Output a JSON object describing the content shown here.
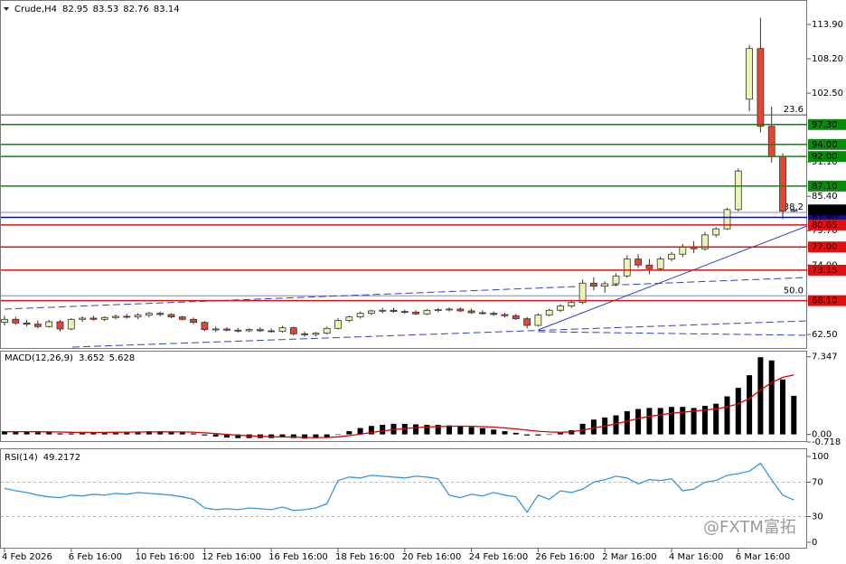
{
  "header": {
    "symbol": "Crude,H4"
  },
  "watermark": "@FXTM富拓",
  "chart_data": [
    {
      "type": "candlestick",
      "up_color": "#eef2b4",
      "down_color": "#e4472f",
      "outline_color": "#333333",
      "open": [
        64.5,
        65.0,
        64.4,
        64.2,
        63.8,
        64.6,
        63.4,
        65.0,
        65.2,
        65.0,
        65.3,
        65.5,
        65.4,
        65.7,
        66.0,
        65.8,
        65.4,
        65.0,
        64.5,
        63.3,
        63.4,
        63.2,
        63.1,
        63.3,
        63.1,
        63.0,
        63.6,
        62.6,
        62.5,
        62.7,
        63.5,
        64.8,
        65.4,
        66.0,
        66.4,
        66.5,
        66.3,
        66.2,
        65.9,
        66.5,
        66.6,
        66.7,
        66.4,
        66.1,
        66.0,
        65.8,
        65.6,
        65.1,
        64.0,
        65.7,
        66.5,
        67.2,
        67.8,
        71.0,
        70.5,
        70.9,
        72.2,
        75.0,
        74.0,
        73.4,
        75.0,
        75.8,
        77.0,
        76.7,
        79.0,
        80.0,
        83.2,
        101.5,
        109.9,
        97.0,
        92.0,
        82.95
      ],
      "high": [
        65.6,
        65.4,
        64.9,
        64.8,
        64.9,
        64.9,
        65.2,
        65.5,
        65.6,
        65.5,
        65.8,
        65.9,
        66.0,
        66.2,
        66.3,
        66.0,
        65.6,
        65.3,
        64.7,
        63.8,
        63.7,
        63.6,
        63.5,
        63.7,
        63.5,
        63.9,
        63.8,
        63.0,
        62.9,
        63.8,
        65.2,
        65.6,
        66.3,
        66.6,
        66.9,
        66.9,
        66.6,
        66.5,
        66.7,
        66.9,
        67.0,
        67.0,
        66.8,
        66.5,
        66.3,
        66.1,
        65.9,
        65.4,
        66.0,
        66.8,
        67.5,
        68.0,
        71.6,
        72.0,
        71.3,
        72.6,
        75.6,
        75.8,
        75.0,
        75.4,
        76.2,
        77.5,
        78.0,
        79.5,
        80.3,
        83.5,
        90.0,
        110.5,
        115.0,
        100.3,
        92.5,
        83.53
      ],
      "low": [
        64.0,
        64.1,
        63.8,
        63.5,
        63.6,
        63.0,
        63.2,
        64.6,
        64.8,
        64.7,
        65.0,
        65.1,
        65.0,
        65.3,
        65.5,
        65.2,
        64.8,
        64.2,
        63.0,
        62.9,
        63.0,
        62.8,
        62.9,
        62.9,
        62.8,
        62.8,
        62.3,
        62.1,
        62.2,
        62.5,
        63.3,
        64.5,
        65.1,
        65.7,
        66.0,
        66.1,
        65.9,
        65.7,
        65.7,
        66.2,
        66.3,
        66.2,
        65.9,
        65.8,
        65.6,
        65.3,
        64.9,
        63.5,
        63.8,
        65.5,
        66.2,
        66.9,
        67.5,
        69.8,
        69.4,
        70.5,
        71.9,
        73.5,
        72.5,
        73.0,
        74.6,
        75.3,
        76.0,
        76.4,
        78.6,
        79.8,
        82.9,
        99.5,
        96.0,
        91.0,
        81.6,
        82.76
      ],
      "close": [
        65.0,
        64.4,
        64.2,
        63.8,
        64.6,
        63.4,
        65.0,
        65.2,
        65.0,
        65.3,
        65.5,
        65.4,
        65.7,
        66.0,
        65.8,
        65.4,
        65.0,
        64.5,
        63.3,
        63.4,
        63.2,
        63.1,
        63.3,
        63.1,
        63.0,
        63.6,
        62.6,
        62.5,
        62.7,
        63.5,
        64.8,
        65.4,
        66.0,
        66.4,
        66.5,
        66.3,
        66.2,
        65.9,
        66.5,
        66.6,
        66.7,
        66.4,
        66.1,
        66.0,
        65.8,
        65.6,
        65.1,
        64.0,
        65.7,
        66.5,
        67.2,
        67.8,
        71.0,
        70.5,
        70.9,
        72.2,
        75.0,
        74.0,
        73.4,
        75.0,
        75.8,
        77.0,
        76.7,
        79.0,
        80.0,
        83.2,
        89.6,
        109.9,
        97.0,
        92.0,
        82.95,
        83.14
      ],
      "ylim": [
        60.1,
        117.95
      ],
      "yticks": [
        {
          "value": 62.5,
          "label": "62.50"
        },
        {
          "value": 74,
          "label": "74.00"
        },
        {
          "value": 79.7,
          "label": "79.70"
        },
        {
          "value": 85.4,
          "label": "85.40"
        },
        {
          "value": 91.1,
          "label": "91.10"
        },
        {
          "value": 102.5,
          "label": "102.50"
        },
        {
          "value": 108.2,
          "label": "108.20"
        },
        {
          "value": 113.9,
          "label": "113.90"
        }
      ],
      "xticks": [
        {
          "value": 0,
          "label": "4 Feb 2026"
        },
        {
          "value": 6,
          "label": "6 Feb 16:00"
        },
        {
          "value": 12,
          "label": "10 Feb 16:00"
        },
        {
          "value": 18,
          "label": "12 Feb 16:00"
        },
        {
          "value": 24,
          "label": "16 Feb 16:00"
        },
        {
          "value": 30,
          "label": "18 Feb 16:00"
        },
        {
          "value": 36,
          "label": "20 Feb 16:00"
        },
        {
          "value": 42,
          "label": "24 Feb 16:00"
        },
        {
          "value": 48,
          "label": "26 Feb 16:00"
        },
        {
          "value": 54,
          "label": "2 Mar 16:00"
        },
        {
          "value": 60,
          "label": "4 Mar 16:00"
        },
        {
          "value": 66,
          "label": "6 Mar 16:00"
        }
      ],
      "fib_levels": [
        {
          "value": 98.9,
          "label": "23.6",
          "color": "#444444"
        },
        {
          "value": 82.73,
          "label": "38.2",
          "color": "#7f86c8"
        },
        {
          "value": 68.9,
          "label": "50.0",
          "color": "#7f86c8"
        }
      ],
      "levels": [
        {
          "value": 97.3,
          "label": "97.30",
          "color": "#0a8a0a",
          "text_color": "#000000"
        },
        {
          "value": 94,
          "label": "94.00",
          "color": "#0a8a0a",
          "text_color": "#000000"
        },
        {
          "value": 92,
          "label": "92.00",
          "color": "#0a8a0a",
          "text_color": "#000000"
        },
        {
          "value": 87.1,
          "label": "87.10",
          "color": "#0a8a0a",
          "text_color": "#000000"
        },
        {
          "value": 81.9,
          "label": "81.90",
          "color": "#10108a",
          "text_color": "#ffffff"
        },
        {
          "value": 80.65,
          "label": "80.65",
          "color": "#e01010",
          "text_color": "#ffffff"
        },
        {
          "value": 77,
          "label": "77.00",
          "color": "#e01010",
          "text_color": "#ffffff"
        },
        {
          "value": 73.15,
          "label": "73.15",
          "color": "#e01010",
          "text_color": "#ffffff"
        },
        {
          "value": 68.1,
          "label": "68.10",
          "color": "#e01010",
          "text_color": "#ffffff"
        }
      ],
      "trendlines": [
        {
          "x": [
            0,
            72.2
          ],
          "y": [
            66.7,
            71.94
          ],
          "dashed": true,
          "color": "#3040c8"
        },
        {
          "x": [
            6.1,
            72.2
          ],
          "y": [
            60.4,
            64.75
          ],
          "dashed": true,
          "color": "#3040c8"
        },
        {
          "x": [
            48,
            72.2
          ],
          "y": [
            62.95,
            62.35
          ],
          "dashed": true,
          "color": "#3040c8"
        },
        {
          "x": [
            48,
            72.2
          ],
          "y": [
            63.25,
            80.48
          ],
          "dashed": false,
          "color": "#3040c8"
        }
      ]
    },
    {
      "type": "macd",
      "title": "MACD(12,26,9)",
      "color": "#000000",
      "signal_color": "#e00000",
      "values": [
        0.3,
        0.3,
        0.25,
        0.2,
        0.2,
        0.1,
        0.1,
        0.15,
        0.2,
        0.2,
        0.25,
        0.25,
        0.25,
        0.3,
        0.3,
        0.25,
        0.2,
        0.1,
        -0.1,
        -0.2,
        -0.3,
        -0.35,
        -0.35,
        -0.35,
        -0.35,
        -0.3,
        -0.35,
        -0.4,
        -0.35,
        -0.25,
        0.0,
        0.3,
        0.6,
        0.8,
        0.9,
        1.0,
        1.0,
        0.95,
        0.9,
        0.9,
        0.85,
        0.8,
        0.7,
        0.6,
        0.45,
        0.3,
        0.15,
        -0.1,
        -0.1,
        0.0,
        0.2,
        0.4,
        1.0,
        1.4,
        1.6,
        1.8,
        2.2,
        2.4,
        2.5,
        2.5,
        2.6,
        2.6,
        2.5,
        2.7,
        2.9,
        3.6,
        4.4,
        5.6,
        7.3,
        7.0,
        5.2,
        3.652
      ],
      "signal": [
        0.25,
        0.26,
        0.26,
        0.25,
        0.24,
        0.22,
        0.2,
        0.19,
        0.19,
        0.19,
        0.2,
        0.21,
        0.22,
        0.23,
        0.24,
        0.24,
        0.23,
        0.21,
        0.15,
        0.08,
        0.0,
        -0.08,
        -0.14,
        -0.19,
        -0.22,
        -0.24,
        -0.26,
        -0.29,
        -0.3,
        -0.29,
        -0.23,
        -0.12,
        0.02,
        0.18,
        0.32,
        0.45,
        0.56,
        0.64,
        0.7,
        0.74,
        0.77,
        0.78,
        0.77,
        0.74,
        0.69,
        0.61,
        0.52,
        0.4,
        0.3,
        0.23,
        0.2,
        0.24,
        0.4,
        0.6,
        0.8,
        1.0,
        1.25,
        1.5,
        1.7,
        1.85,
        2.0,
        2.1,
        2.2,
        2.3,
        2.4,
        2.6,
        2.9,
        3.4,
        4.2,
        4.9,
        5.4,
        5.628
      ],
      "ylim": [
        -0.718,
        7.92
      ],
      "yticks": [
        -0.718,
        {
          "value": 0,
          "label": "0.00"
        },
        7.347
      ]
    },
    {
      "type": "rsi",
      "title": "RSI(14)",
      "color": "#3a95e0",
      "grid_color": "#b8b8b8",
      "values": [
        63,
        60,
        58,
        55,
        53,
        52,
        55,
        54,
        56,
        55,
        57,
        56,
        58,
        57,
        56,
        55,
        53,
        50,
        40,
        38,
        39,
        38,
        40,
        39,
        38,
        41,
        37,
        38,
        40,
        45,
        72,
        76,
        75,
        78,
        77,
        76,
        75,
        77,
        76,
        74,
        55,
        52,
        56,
        54,
        58,
        55,
        53,
        35,
        55,
        50,
        60,
        58,
        62,
        70,
        73,
        77,
        75,
        68,
        73,
        72,
        74,
        60,
        62,
        70,
        72,
        78,
        80,
        83,
        92,
        73,
        55,
        49.2172
      ],
      "ylim": [
        -7.4,
        107.4
      ],
      "yticks": [
        0,
        30,
        70,
        100
      ]
    }
  ]
}
